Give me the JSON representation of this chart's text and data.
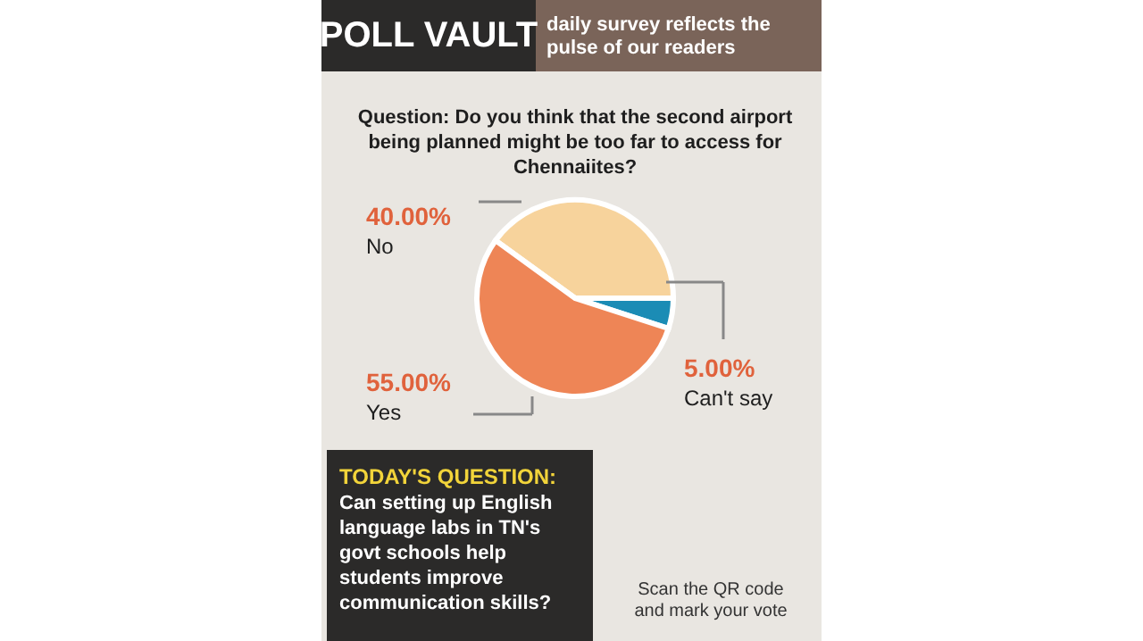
{
  "chart_data": {
    "type": "pie",
    "title": "POLL VAULT",
    "subtitle": "daily survey reflects the\npulse of our readers",
    "categories": [
      "No",
      "Can't say",
      "Yes"
    ],
    "values": [
      40,
      5,
      55
    ],
    "colors": [
      "#f7d39c",
      "#1b8cb5",
      "#ee8556"
    ],
    "value_labels": [
      "40.00%",
      "5.00%",
      "55.00%"
    ],
    "legend": false,
    "annotations": [
      "Question: Do you think that the second airport\nbeing planned might be too far to access for\nChennaiites?",
      "TODAY'S QUESTION:",
      "Can setting up English\nlanguage labs in TN's\ngovt schools help\nstudents improve\ncommunication skills?",
      "Scan the QR code\nand mark your vote"
    ]
  }
}
